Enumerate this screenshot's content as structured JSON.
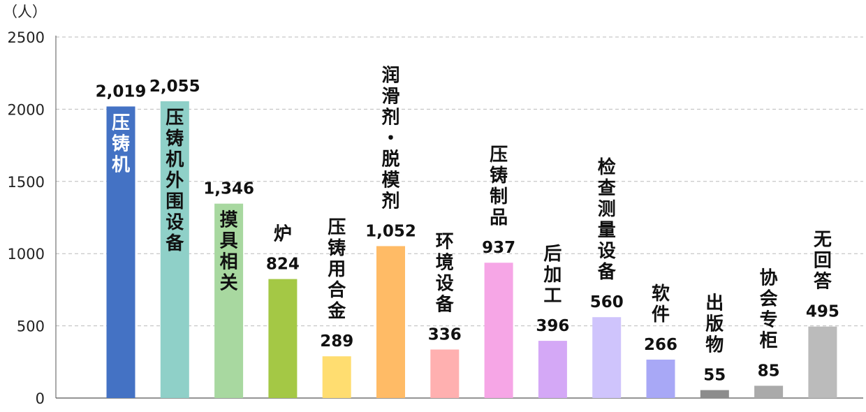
{
  "chart_data": {
    "type": "bar",
    "y_unit": "（人）",
    "ylim": [
      0,
      2500
    ],
    "yticks": [
      0,
      500,
      1000,
      1500,
      2000,
      2500
    ],
    "grid": true,
    "categories": [
      "压铸机",
      "压铸机外围设备",
      "摸具相关",
      "炉",
      "压铸用合金",
      "润滑剂・脱模剂",
      "环境设备",
      "压铸制品",
      "后加工",
      "检查测量设备",
      "软件",
      "出版物",
      "协会专柜",
      "无回答"
    ],
    "values": [
      2019,
      2055,
      1346,
      824,
      289,
      1052,
      336,
      937,
      396,
      560,
      266,
      55,
      85,
      495
    ],
    "value_labels": [
      "2,019",
      "2,055",
      "1,346",
      "824",
      "289",
      "1,052",
      "336",
      "937",
      "396",
      "560",
      "266",
      "55",
      "85",
      "495"
    ],
    "label_inside": [
      true,
      true,
      true,
      false,
      false,
      false,
      false,
      false,
      false,
      false,
      false,
      false,
      false,
      false
    ],
    "colors": [
      "#4472c4",
      "#8fd0c8",
      "#a8d8a0",
      "#a4c845",
      "#ffdd70",
      "#ffbb66",
      "#ffb0b0",
      "#f6a6e6",
      "#d4a8f6",
      "#cfc4fc",
      "#a8a8f6",
      "#8c8c8c",
      "#aaaaaa",
      "#bbbbbb"
    ],
    "label_colors": [
      "#ffffff",
      "#111111",
      "#111111",
      "#111111",
      "#111111",
      "#111111",
      "#111111",
      "#111111",
      "#111111",
      "#111111",
      "#111111",
      "#111111",
      "#111111",
      "#111111"
    ]
  }
}
